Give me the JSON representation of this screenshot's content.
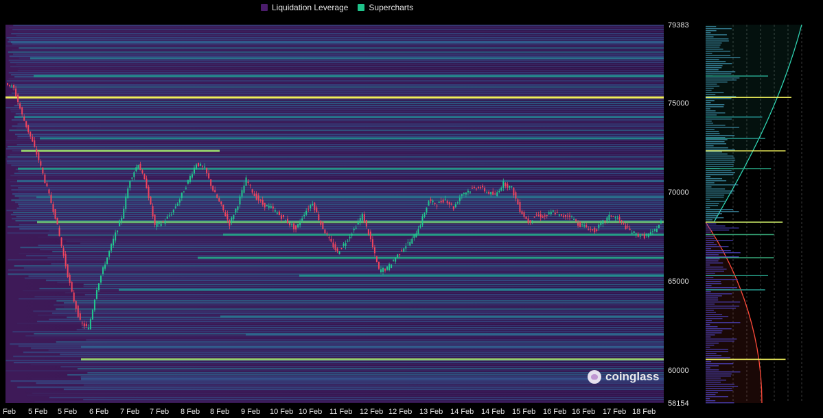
{
  "chart_data": {
    "type": "heatmap",
    "title": "",
    "legend": {
      "placement": "top-center",
      "items": [
        {
          "label": "Liquidation Leverage",
          "color": "#4b1c6b"
        },
        {
          "label": "Supercharts",
          "color": "#1fc38a"
        }
      ]
    },
    "ylim": [
      58154,
      79383
    ],
    "y_ticks": [
      79383,
      75000,
      70000,
      65000,
      60000,
      58154
    ],
    "x_ticks": [
      "Feb",
      "5 Feb",
      "5 Feb",
      "6 Feb",
      "7 Feb",
      "7 Feb",
      "8 Feb",
      "8 Feb",
      "9 Feb",
      "10 Feb",
      "10 Feb",
      "11 Feb",
      "12 Feb",
      "12 Feb",
      "13 Feb",
      "14 Feb",
      "14 Feb",
      "15 Feb",
      "16 Feb",
      "16 Feb",
      "17 Feb",
      "18 Feb"
    ],
    "price_path": [
      76200,
      75800,
      74300,
      73100,
      71800,
      70200,
      68600,
      66400,
      64300,
      62700,
      62300,
      64600,
      66000,
      67300,
      68600,
      70700,
      71600,
      70300,
      68100,
      68300,
      68800,
      69600,
      70600,
      71600,
      71300,
      70100,
      69200,
      68200,
      69300,
      70700,
      69800,
      69300,
      69100,
      68700,
      68300,
      67900,
      68800,
      69400,
      68200,
      67300,
      66600,
      67200,
      67900,
      68700,
      67300,
      65600,
      65700,
      66300,
      66900,
      67300,
      68200,
      69500,
      69300,
      69600,
      69100,
      69900,
      70100,
      70300,
      70000,
      69800,
      70500,
      70200,
      69000,
      68300,
      68700,
      68600,
      68900,
      68600,
      68700,
      68200,
      68000,
      67800,
      68300,
      68700,
      68400,
      67900,
      67600,
      67500,
      67700,
      68300
    ],
    "liquidation_levels": [
      {
        "price": 75300,
        "intensity": 1.0
      },
      {
        "price": 72300,
        "intensity": 0.9
      },
      {
        "price": 68300,
        "intensity": 0.85
      },
      {
        "price": 60600,
        "intensity": 0.9
      },
      {
        "price": 66300,
        "intensity": 0.7
      },
      {
        "price": 67600,
        "intensity": 0.7
      },
      {
        "price": 71300,
        "intensity": 0.65
      },
      {
        "price": 76500,
        "intensity": 0.6
      },
      {
        "price": 65300,
        "intensity": 0.6
      },
      {
        "price": 64500,
        "intensity": 0.55
      },
      {
        "price": 73000,
        "intensity": 0.55
      },
      {
        "price": 74200,
        "intensity": 0.5
      },
      {
        "price": 77500,
        "intensity": 0.45
      },
      {
        "price": 63000,
        "intensity": 0.45
      },
      {
        "price": 62000,
        "intensity": 0.4
      },
      {
        "price": 69700,
        "intensity": 0.45
      },
      {
        "price": 78400,
        "intensity": 0.35
      },
      {
        "price": 61300,
        "intensity": 0.35
      },
      {
        "price": 59500,
        "intensity": 0.3
      },
      {
        "price": 70600,
        "intensity": 0.4
      }
    ],
    "profile_split_price": 68300,
    "profile_short_color": "#2fd5b3",
    "profile_long_color": "#ff4a3a",
    "price_up_color": "#22c78f",
    "price_down_color": "#f0445e",
    "watermark": "coinglass"
  }
}
